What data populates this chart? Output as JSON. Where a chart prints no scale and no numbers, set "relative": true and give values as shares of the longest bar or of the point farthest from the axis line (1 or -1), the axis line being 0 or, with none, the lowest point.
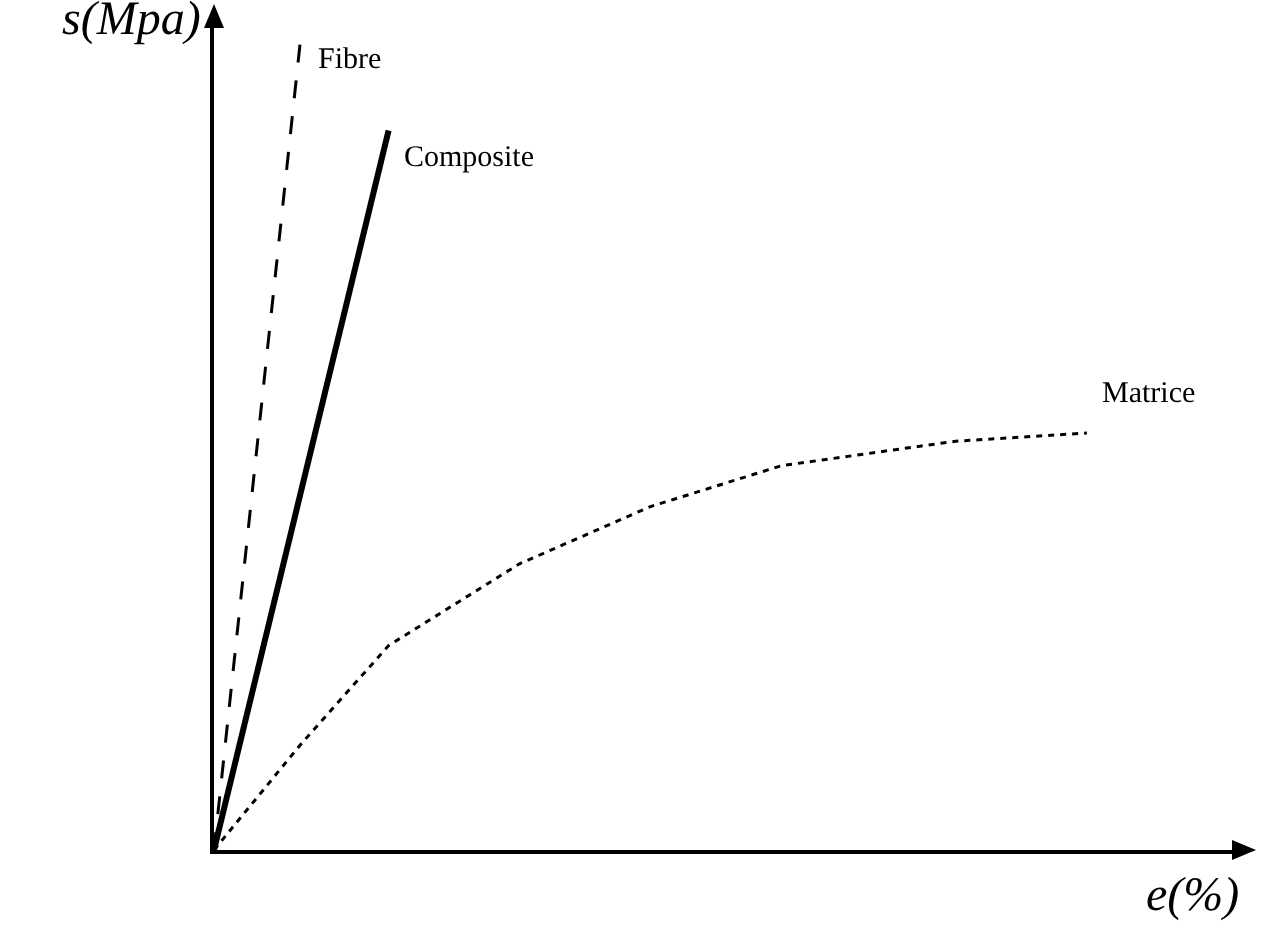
{
  "chart_data": {
    "type": "line",
    "relative": true,
    "xlabel": "e(%)",
    "ylabel": "s(Mpa)",
    "grid": false,
    "legend": false,
    "marker": "none",
    "categories": [
      null,
      null,
      null,
      null,
      null,
      null,
      null,
      null,
      null,
      null,
      null,
      null,
      null,
      null,
      null,
      null,
      null,
      null,
      null,
      null,
      null
    ],
    "series": [
      {
        "name": "Fibre",
        "color": "#000000",
        "line_style": "dashed",
        "values": [
          0,
          null,
          1,
          null,
          null,
          null,
          null,
          null,
          null,
          null,
          null,
          null,
          null,
          null,
          null,
          null,
          null,
          null,
          null,
          null,
          null
        ]
      },
      {
        "name": "Composite",
        "color": "#000000",
        "line_style": "solid",
        "values": [
          0,
          null,
          null,
          null,
          0.88,
          null,
          null,
          null,
          null,
          null,
          null,
          null,
          null,
          null,
          null,
          null,
          null,
          null,
          null,
          null,
          null
        ]
      },
      {
        "name": "Matrice",
        "color": "#000000",
        "line_style": "dotted",
        "values": [
          0,
          null,
          0.13,
          null,
          0.25,
          null,
          null,
          0.35,
          null,
          null,
          0.42,
          null,
          null,
          0.47,
          null,
          null,
          null,
          0.5,
          null,
          null,
          0.51
        ]
      }
    ]
  }
}
